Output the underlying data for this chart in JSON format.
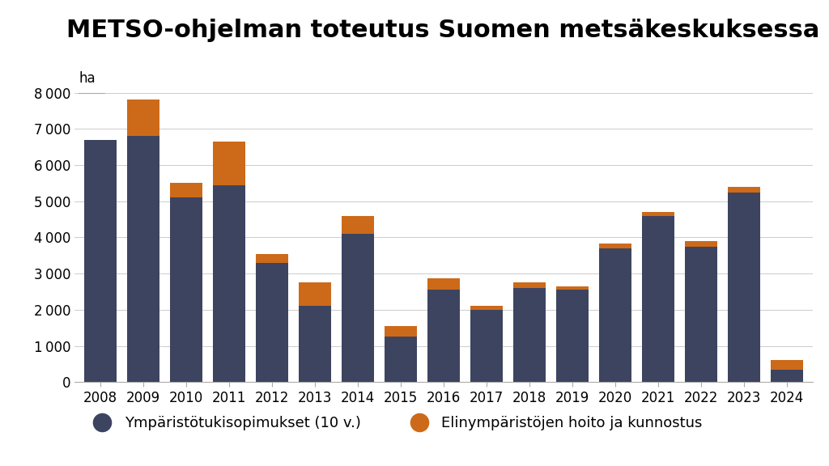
{
  "title": "METSO-ohjelman toteutus Suomen metsäkeskuksessa",
  "ylabel": "ha",
  "years": [
    2008,
    2009,
    2010,
    2011,
    2012,
    2013,
    2014,
    2015,
    2016,
    2017,
    2018,
    2019,
    2020,
    2021,
    2022,
    2023,
    2024
  ],
  "dark_values": [
    6700,
    6800,
    5100,
    5450,
    3300,
    2100,
    4100,
    1250,
    2550,
    2000,
    2600,
    2550,
    3700,
    4600,
    3750,
    5250,
    350
  ],
  "orange_values": [
    0,
    1000,
    400,
    1200,
    250,
    650,
    500,
    300,
    330,
    100,
    150,
    100,
    120,
    100,
    150,
    150,
    250
  ],
  "dark_color": "#3d4460",
  "orange_color": "#cc6a1a",
  "background_color": "#ffffff",
  "ylim": [
    0,
    8500
  ],
  "yticks": [
    0,
    1000,
    2000,
    3000,
    4000,
    5000,
    6000,
    7000,
    8000
  ],
  "legend_dark": "Ympäristötukisopimukset (10 v.)",
  "legend_orange": "Elinympäristöjen hoito ja kunnostus",
  "title_fontsize": 22,
  "axis_fontsize": 12,
  "legend_fontsize": 13
}
